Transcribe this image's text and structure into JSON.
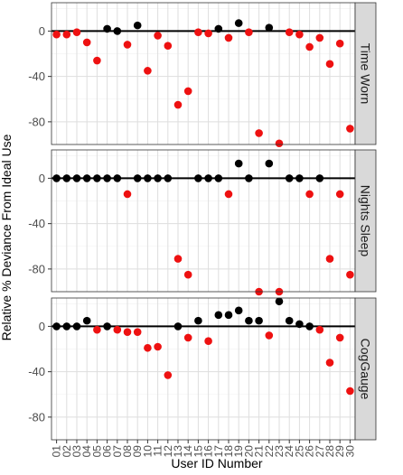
{
  "chart_data": {
    "type": "scatter",
    "xlabel": "User ID Number",
    "ylabel": "Relative % Deviance From Ideal Use",
    "ylim": [
      -100,
      25
    ],
    "yticks": [
      0,
      -40,
      -80
    ],
    "categories": [
      "01",
      "02",
      "03",
      "04",
      "05",
      "06",
      "07",
      "08",
      "09",
      "10",
      "11",
      "12",
      "13",
      "14",
      "15",
      "16",
      "17",
      "18",
      "19",
      "20",
      "21",
      "22",
      "23",
      "24",
      "25",
      "26",
      "27",
      "28",
      "29",
      "30"
    ],
    "colors": {
      "above_or_at_zero": "#000000",
      "below_zero": "#ee1111"
    },
    "grid": true,
    "reference_line": 0,
    "panels": [
      {
        "name": "Time Worn",
        "values": [
          -3,
          -3,
          -1,
          -10,
          -26,
          2,
          0,
          -12,
          5,
          -35,
          -4,
          -13,
          -65,
          -53,
          -1,
          -2,
          2,
          -6,
          7,
          -1,
          -90,
          3,
          -99,
          -1,
          -3,
          -14,
          -6,
          -29,
          -11,
          -86
        ]
      },
      {
        "name": "Nights Sleep",
        "values": [
          0,
          0,
          0,
          0,
          0,
          0,
          0,
          -14,
          0,
          0,
          0,
          0,
          -71,
          -85,
          0,
          0,
          0,
          -14,
          13,
          0,
          -100,
          13,
          -100,
          0,
          0,
          -14,
          0,
          -71,
          -14,
          -85
        ]
      },
      {
        "name": "CogGauge",
        "values": [
          0,
          0,
          0,
          5,
          -3,
          0,
          -3,
          -5,
          -5,
          -19,
          -18,
          -43,
          0,
          -10,
          5,
          -13,
          10,
          10,
          14,
          5,
          5,
          -8,
          22,
          5,
          2,
          0,
          -3,
          -32,
          -10,
          -57
        ]
      }
    ]
  }
}
